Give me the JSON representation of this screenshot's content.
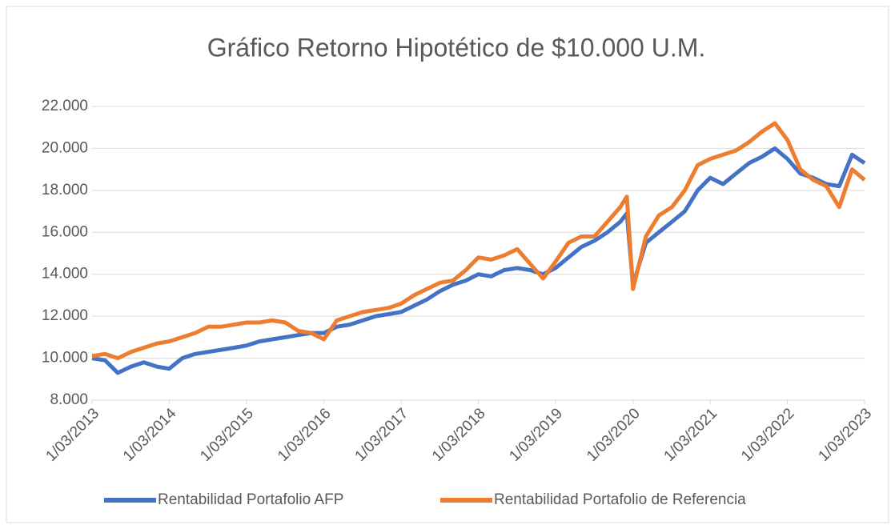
{
  "chart_data": {
    "type": "line",
    "title": "Gráfico Retorno Hipotético de $10.000 U.M.",
    "x": [
      "2013-03-01",
      "2013-05-01",
      "2013-07-01",
      "2013-09-01",
      "2013-11-01",
      "2014-01-01",
      "2014-03-01",
      "2014-05-01",
      "2014-07-01",
      "2014-09-01",
      "2014-11-01",
      "2015-01-01",
      "2015-03-01",
      "2015-05-01",
      "2015-07-01",
      "2015-09-01",
      "2015-11-01",
      "2016-01-01",
      "2016-03-01",
      "2016-05-01",
      "2016-07-01",
      "2016-09-01",
      "2016-11-01",
      "2017-01-01",
      "2017-03-01",
      "2017-05-01",
      "2017-07-01",
      "2017-09-01",
      "2017-11-01",
      "2018-01-01",
      "2018-03-01",
      "2018-05-01",
      "2018-07-01",
      "2018-09-01",
      "2018-11-01",
      "2019-01-01",
      "2019-03-01",
      "2019-05-01",
      "2019-07-01",
      "2019-09-01",
      "2019-11-01",
      "2020-01-01",
      "2020-02-01",
      "2020-03-01",
      "2020-05-01",
      "2020-07-01",
      "2020-09-01",
      "2020-11-01",
      "2021-01-01",
      "2021-03-01",
      "2021-05-01",
      "2021-07-01",
      "2021-09-01",
      "2021-11-01",
      "2022-01-01",
      "2022-03-01",
      "2022-05-01",
      "2022-07-01",
      "2022-09-01",
      "2022-11-01",
      "2023-01-01",
      "2023-03-01"
    ],
    "series": [
      {
        "name": "Rentabilidad Portafolio AFP",
        "color": "#4472c4",
        "values": [
          10000,
          9900,
          9300,
          9600,
          9800,
          9600,
          9500,
          10000,
          10200,
          10300,
          10400,
          10500,
          10600,
          10800,
          10900,
          11000,
          11100,
          11200,
          11200,
          11500,
          11600,
          11800,
          12000,
          12100,
          12200,
          12500,
          12800,
          13200,
          13500,
          13700,
          14000,
          13900,
          14200,
          14300,
          14200,
          14000,
          14300,
          14800,
          15300,
          15600,
          16000,
          16500,
          16900,
          13500,
          15500,
          16000,
          16500,
          17000,
          18000,
          18600,
          18300,
          18800,
          19300,
          19600,
          20000,
          19500,
          18800,
          18600,
          18300,
          18200,
          19700,
          19300
        ]
      },
      {
        "name": "Rentabilidad Portafolio de Referencia",
        "color": "#ed7d31",
        "values": [
          10100,
          10200,
          10000,
          10300,
          10500,
          10700,
          10800,
          11000,
          11200,
          11500,
          11500,
          11600,
          11700,
          11700,
          11800,
          11700,
          11300,
          11200,
          10900,
          11800,
          12000,
          12200,
          12300,
          12400,
          12600,
          13000,
          13300,
          13600,
          13700,
          14200,
          14800,
          14700,
          14900,
          15200,
          14500,
          13800,
          14600,
          15500,
          15800,
          15800,
          16500,
          17200,
          17700,
          13300,
          15800,
          16800,
          17200,
          18000,
          19200,
          19500,
          19700,
          19900,
          20300,
          20800,
          21200,
          20400,
          19000,
          18500,
          18200,
          17200,
          19000,
          18500
        ]
      }
    ],
    "xlim": [
      "2013-03-01",
      "2023-03-01"
    ],
    "xticks": [
      {
        "value": "2013-03-01",
        "label": "1/03/2013"
      },
      {
        "value": "2014-03-01",
        "label": "1/03/2014"
      },
      {
        "value": "2015-03-01",
        "label": "1/03/2015"
      },
      {
        "value": "2016-03-01",
        "label": "1/03/2016"
      },
      {
        "value": "2017-03-01",
        "label": "1/03/2017"
      },
      {
        "value": "2018-03-01",
        "label": "1/03/2018"
      },
      {
        "value": "2019-03-01",
        "label": "1/03/2019"
      },
      {
        "value": "2020-03-01",
        "label": "1/03/2020"
      },
      {
        "value": "2021-03-01",
        "label": "1/03/2021"
      },
      {
        "value": "2022-03-01",
        "label": "1/03/2022"
      },
      {
        "value": "2023-03-01",
        "label": "1/03/2023"
      }
    ],
    "ylim": [
      8000,
      22000
    ],
    "yticks": [
      {
        "value": 8000,
        "label": "8.000"
      },
      {
        "value": 10000,
        "label": "10.000"
      },
      {
        "value": 12000,
        "label": "12.000"
      },
      {
        "value": 14000,
        "label": "14.000"
      },
      {
        "value": 16000,
        "label": "16.000"
      },
      {
        "value": 18000,
        "label": "18.000"
      },
      {
        "value": 20000,
        "label": "20.000"
      },
      {
        "value": 22000,
        "label": "22.000"
      }
    ],
    "grid": true,
    "legend": "bottom"
  }
}
